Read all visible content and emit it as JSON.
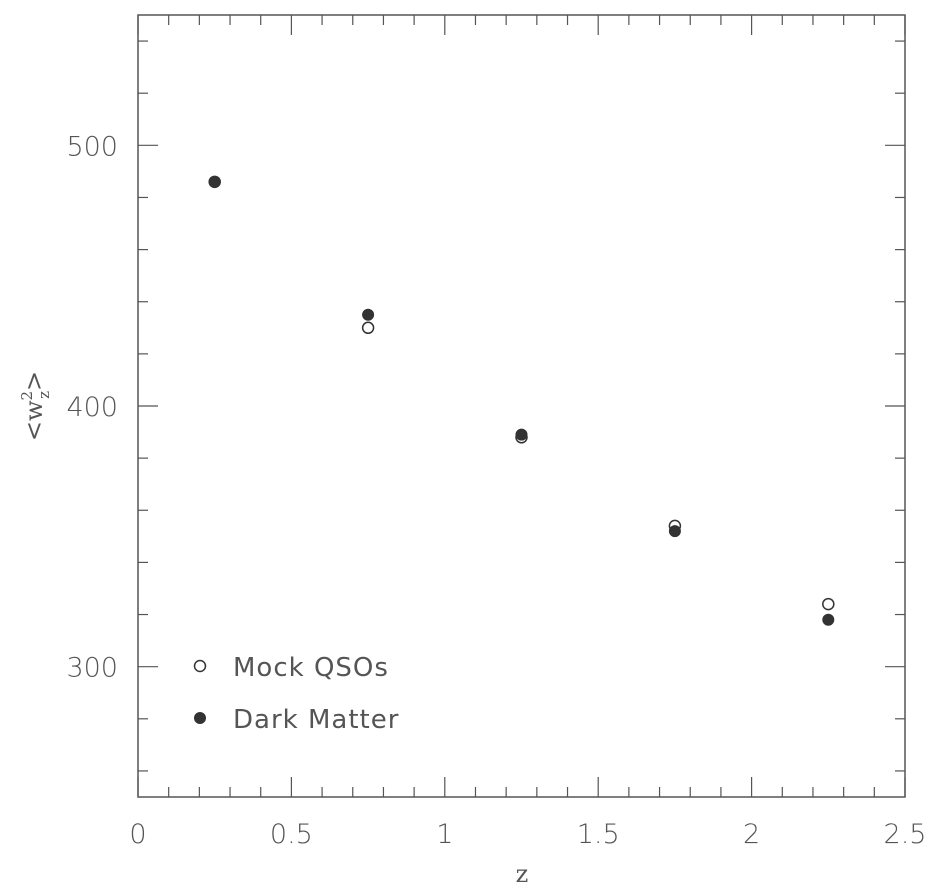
{
  "chart_data": {
    "type": "scatter",
    "xlabel": "z",
    "ylabel_parts": {
      "base": "w",
      "sup": "2",
      "sub": "z",
      "open": "<",
      "close": ">"
    },
    "xlim": [
      0,
      2.5
    ],
    "ylim": [
      250,
      550
    ],
    "x_ticks": [
      0,
      0.5,
      1,
      1.5,
      2,
      2.5
    ],
    "x_tick_labels": [
      "0",
      "0.5",
      "1",
      "1.5",
      "2",
      "2.5"
    ],
    "y_ticks": [
      300,
      400,
      500
    ],
    "y_tick_labels": [
      "300",
      "400",
      "500"
    ],
    "grid": false,
    "legend_position": "bottom-left",
    "series": [
      {
        "name": "Mock QSOs",
        "marker": "open-circle",
        "points": [
          [
            0.25,
            486
          ],
          [
            0.75,
            430
          ],
          [
            1.25,
            388
          ],
          [
            1.75,
            354
          ],
          [
            2.25,
            324
          ]
        ]
      },
      {
        "name": "Dark Matter",
        "marker": "filled-circle",
        "points": [
          [
            0.25,
            486
          ],
          [
            0.75,
            435
          ],
          [
            1.25,
            389
          ],
          [
            1.75,
            352
          ],
          [
            2.25,
            318
          ]
        ]
      }
    ],
    "colors": {
      "axis": "#555555",
      "marker": "#333333"
    }
  }
}
